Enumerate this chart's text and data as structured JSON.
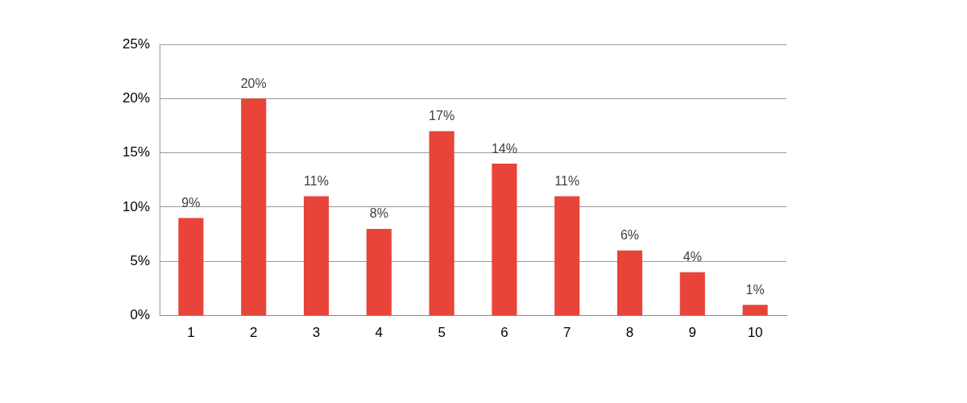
{
  "chart_data": {
    "type": "bar",
    "categories": [
      "1",
      "2",
      "3",
      "4",
      "5",
      "6",
      "7",
      "8",
      "9",
      "10"
    ],
    "values": [
      9,
      20,
      11,
      8,
      17,
      14,
      11,
      6,
      4,
      1
    ],
    "color": "#e8443a",
    "ylim": [
      0,
      25
    ],
    "yticks": [
      {
        "value": 0,
        "label": "0%"
      },
      {
        "value": 5,
        "label": "5%"
      },
      {
        "value": 10,
        "label": "10%"
      },
      {
        "value": 15,
        "label": "15%"
      },
      {
        "value": 20,
        "label": "20%"
      },
      {
        "value": 25,
        "label": "25%"
      }
    ],
    "grid": "y",
    "legend": false,
    "value_labels": [
      "9%",
      "20%",
      "11%",
      "8%",
      "17%",
      "14%",
      "11%",
      "6%",
      "4%",
      "1%"
    ]
  }
}
